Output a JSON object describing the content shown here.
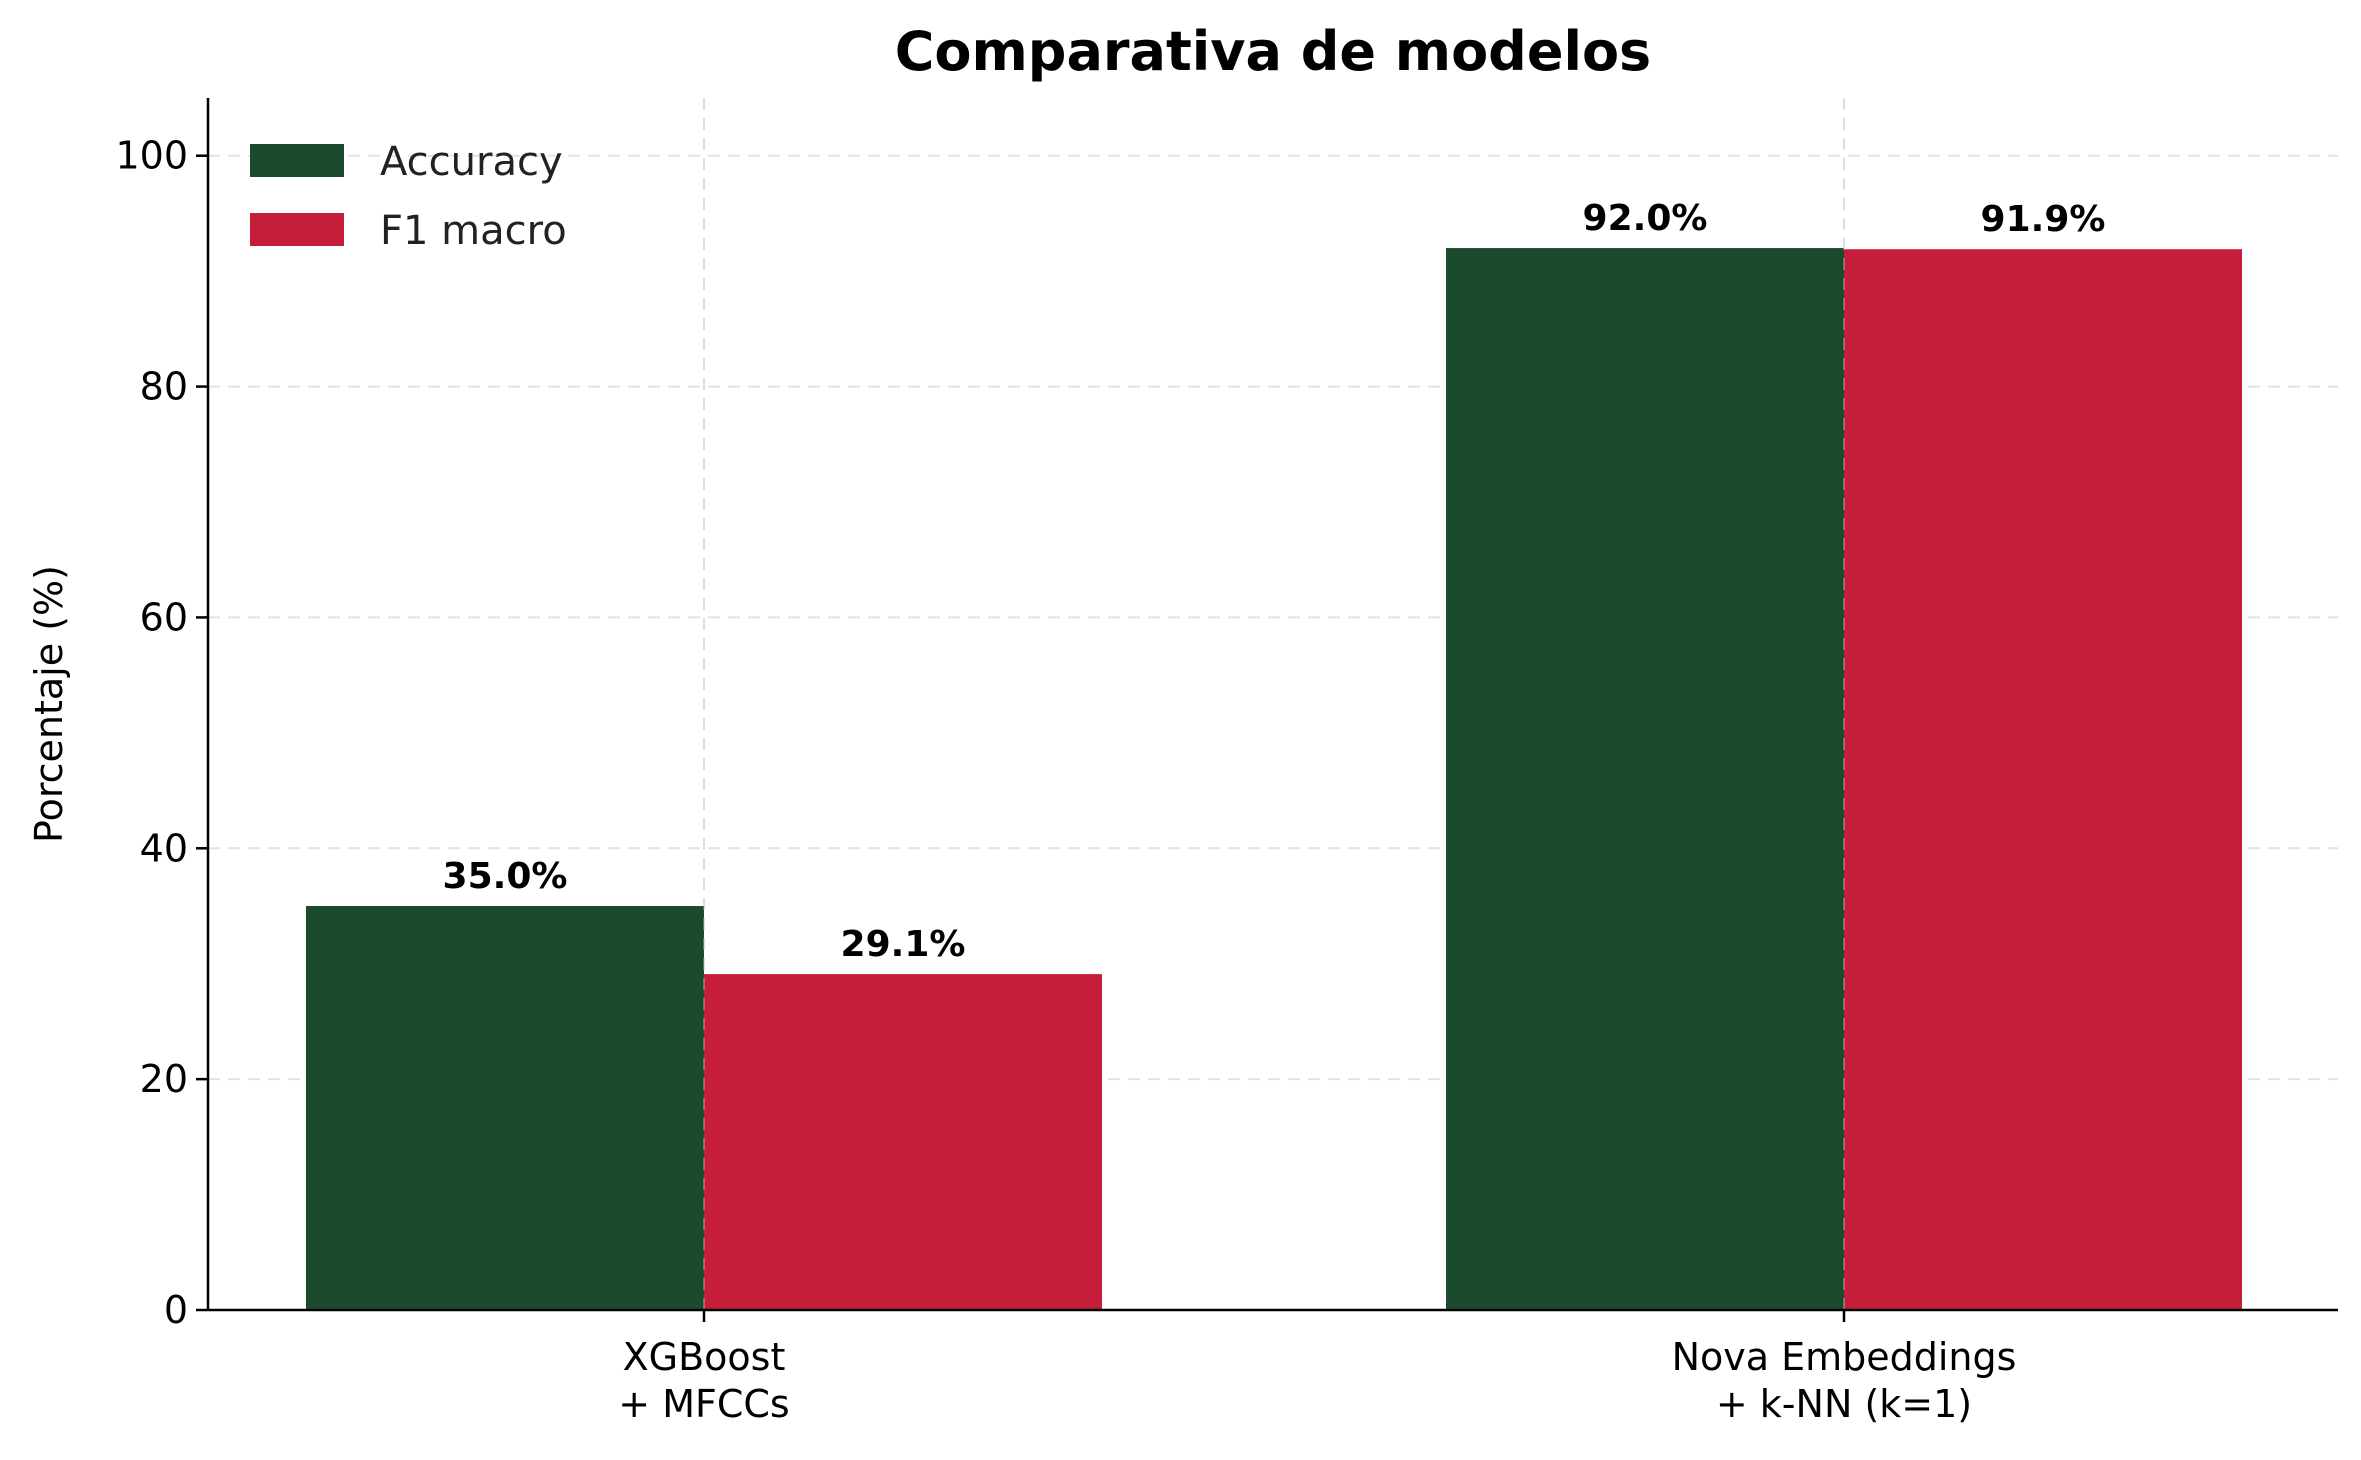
{
  "chart_data": {
    "type": "bar",
    "title": "Comparativa de modelos",
    "xlabel": "",
    "ylabel": "Porcentaje (%)",
    "ylim": [
      0,
      105
    ],
    "yticks": [
      "0",
      "20",
      "40",
      "60",
      "80",
      "100"
    ],
    "categories": [
      [
        "XGBoost",
        "+ MFCCs"
      ],
      [
        "Nova Embeddings",
        "+ k-NN (k=1)"
      ]
    ],
    "series": [
      {
        "name": "Accuracy",
        "color": "#1c4a2c",
        "values": [
          35.0,
          92.0
        ],
        "labels": [
          "35.0%",
          "92.0%"
        ]
      },
      {
        "name": "F1 macro",
        "color": "#c41e3a",
        "values": [
          29.1,
          91.9
        ],
        "labels": [
          "29.1%",
          "91.9%"
        ]
      }
    ],
    "grid": true,
    "legend_position": "top-left"
  }
}
